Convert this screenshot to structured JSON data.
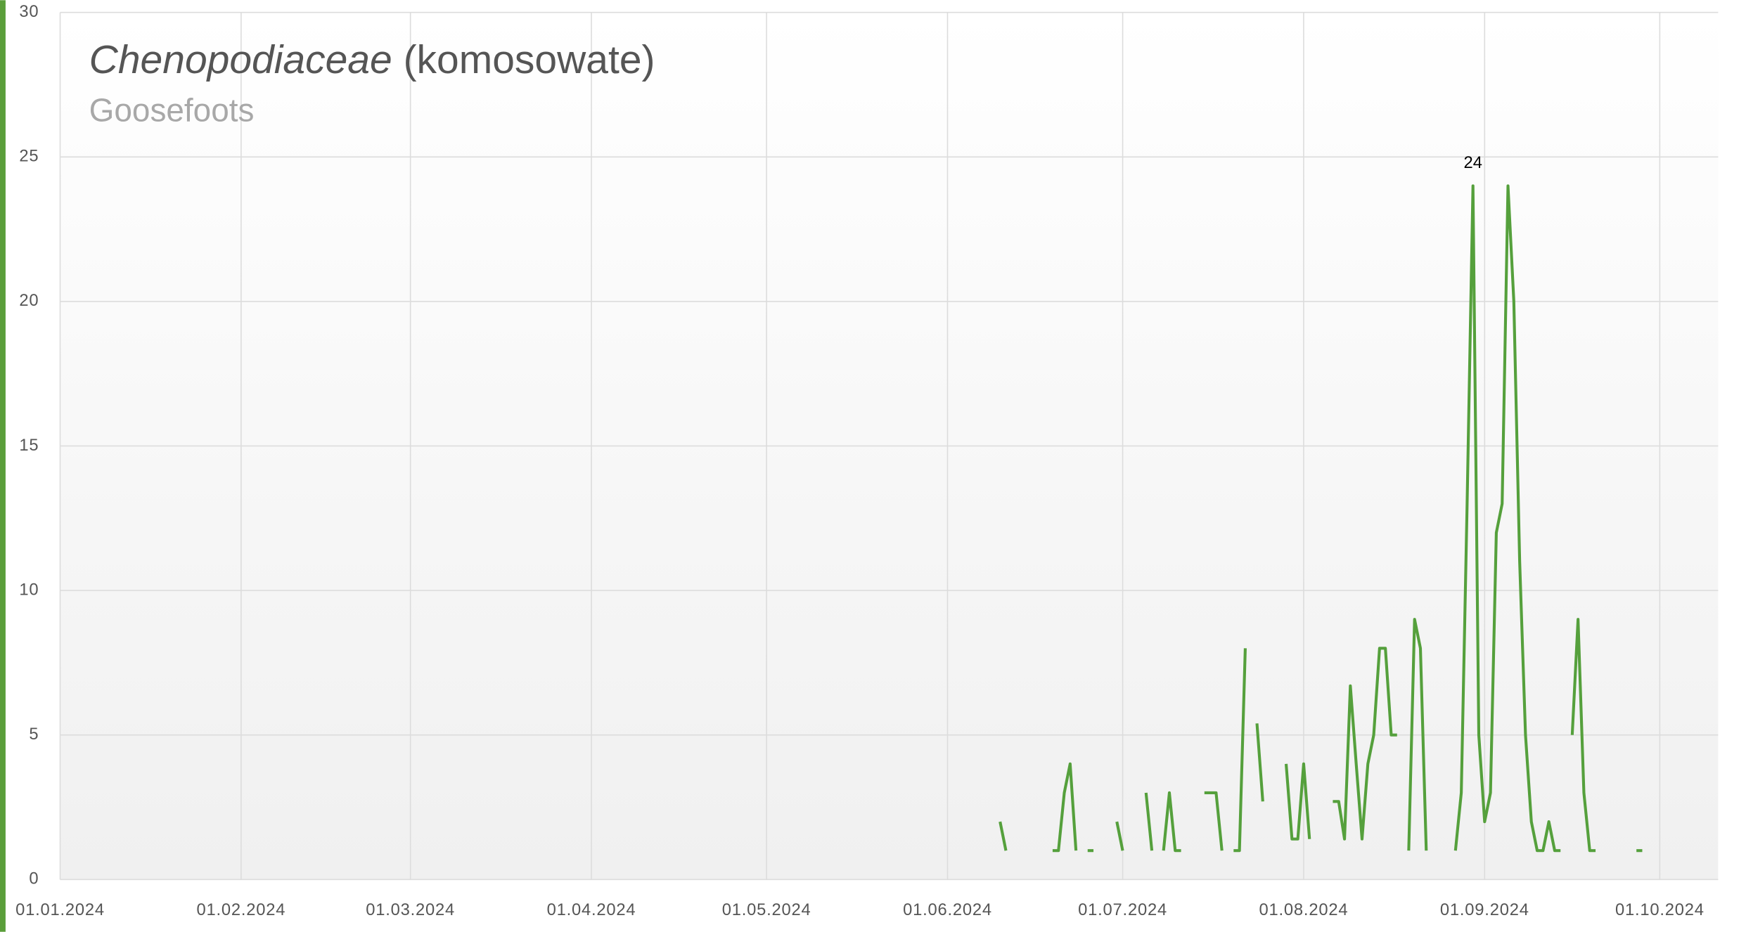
{
  "chart_data": {
    "type": "line",
    "title_taxon": "Chenopodiaceae",
    "title_local": "(komosowate)",
    "subtitle": "Goosefoots",
    "color": "#55a03c",
    "grid": true,
    "xlim": [
      "2024-01-01",
      "2024-10-11"
    ],
    "xticks": [
      {
        "value": "2024-01-01",
        "label": "01.01.2024"
      },
      {
        "value": "2024-02-01",
        "label": "01.02.2024"
      },
      {
        "value": "2024-03-01",
        "label": "01.03.2024"
      },
      {
        "value": "2024-04-01",
        "label": "01.04.2024"
      },
      {
        "value": "2024-05-01",
        "label": "01.05.2024"
      },
      {
        "value": "2024-06-01",
        "label": "01.06.2024"
      },
      {
        "value": "2024-07-01",
        "label": "01.07.2024"
      },
      {
        "value": "2024-08-01",
        "label": "01.08.2024"
      },
      {
        "value": "2024-09-01",
        "label": "01.09.2024"
      },
      {
        "value": "2024-10-01",
        "label": "01.10.2024"
      }
    ],
    "ylim": [
      0,
      30
    ],
    "yticks": [
      0,
      5,
      10,
      15,
      20,
      25,
      30
    ],
    "x": [
      "2024-06-10",
      "2024-06-11",
      "2024-06-12",
      "2024-06-19",
      "2024-06-20",
      "2024-06-21",
      "2024-06-22",
      "2024-06-23",
      "2024-06-24",
      "2024-06-25",
      "2024-06-26",
      "2024-06-27",
      "2024-06-30",
      "2024-07-01",
      "2024-07-02",
      "2024-07-05",
      "2024-07-06",
      "2024-07-07",
      "2024-07-08",
      "2024-07-09",
      "2024-07-10",
      "2024-07-11",
      "2024-07-12",
      "2024-07-15",
      "2024-07-16",
      "2024-07-17",
      "2024-07-18",
      "2024-07-19",
      "2024-07-20",
      "2024-07-21",
      "2024-07-22",
      "2024-07-23",
      "2024-07-24",
      "2024-07-25",
      "2024-07-26",
      "2024-07-29",
      "2024-07-30",
      "2024-07-31",
      "2024-08-01",
      "2024-08-02",
      "2024-08-03",
      "2024-08-06",
      "2024-08-07",
      "2024-08-08",
      "2024-08-09",
      "2024-08-10",
      "2024-08-11",
      "2024-08-12",
      "2024-08-13",
      "2024-08-14",
      "2024-08-15",
      "2024-08-16",
      "2024-08-17",
      "2024-08-18",
      "2024-08-19",
      "2024-08-20",
      "2024-08-21",
      "2024-08-22",
      "2024-08-23",
      "2024-08-27",
      "2024-08-28",
      "2024-08-29",
      "2024-08-30",
      "2024-08-31",
      "2024-09-01",
      "2024-09-02",
      "2024-09-03",
      "2024-09-04",
      "2024-09-05",
      "2024-09-06",
      "2024-09-07",
      "2024-09-08",
      "2024-09-09",
      "2024-09-10",
      "2024-09-11",
      "2024-09-12",
      "2024-09-13",
      "2024-09-14",
      "2024-09-15",
      "2024-09-16",
      "2024-09-17",
      "2024-09-18",
      "2024-09-19",
      "2024-09-20",
      "2024-09-21",
      "2024-09-27",
      "2024-09-28"
    ],
    "values": [
      2,
      1,
      null,
      1,
      1,
      3,
      4,
      1,
      null,
      1,
      1,
      null,
      2,
      1,
      null,
      3,
      1,
      null,
      1,
      3,
      1,
      1,
      null,
      3,
      3,
      3,
      1,
      null,
      1,
      1,
      8,
      null,
      5.4,
      2.7,
      null,
      4,
      1.4,
      1.4,
      4,
      1.4,
      null,
      2.7,
      2.7,
      1.4,
      6.7,
      4,
      1.4,
      4,
      5,
      8,
      8,
      5,
      5,
      null,
      1,
      9,
      8,
      1,
      null,
      1,
      3,
      13,
      24,
      5,
      2,
      3,
      12,
      13,
      24,
      20,
      11,
      5,
      2,
      1,
      1,
      2,
      1,
      1,
      null,
      5,
      9,
      3,
      1,
      1,
      null,
      1,
      1
    ],
    "annotations": [
      {
        "text": "24",
        "x": "2024-08-30",
        "y": 24
      }
    ]
  }
}
